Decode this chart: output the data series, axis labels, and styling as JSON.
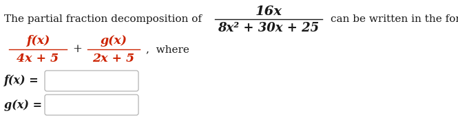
{
  "bg_color": "#ffffff",
  "text_color_black": "#1a1a1a",
  "text_color_red": "#cc2200",
  "line1_left": "The partial fraction decomposition of",
  "line1_fraction_num": "16x",
  "line1_fraction_den": "8x² + 30x + 25",
  "line1_right": "can be written in the form of",
  "line2_frac1_num": "f(x)",
  "line2_frac1_den": "4x + 5",
  "line2_plus": "+",
  "line2_frac2_num": "g(x)",
  "line2_frac2_den": "2x + 5",
  "line2_where": ",  where",
  "line3_label": "f(x) =",
  "line4_label": "g(x) =",
  "figsize": [
    6.65,
    1.78
  ],
  "dpi": 100
}
